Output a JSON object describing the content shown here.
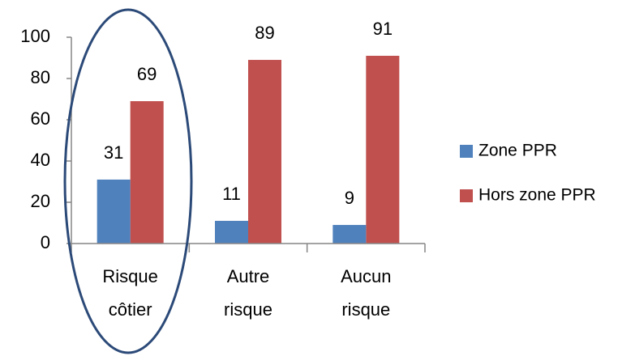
{
  "chart_data": {
    "type": "bar",
    "categories": [
      "Risque côtier",
      "Autre risque",
      "Aucun risque"
    ],
    "series": [
      {
        "name": "Zone PPR",
        "color": "#4f81bd",
        "values": [
          31,
          11,
          9
        ]
      },
      {
        "name": "Hors zone PPR",
        "color": "#c0504d",
        "values": [
          69,
          89,
          91
        ]
      }
    ],
    "ylim": [
      0,
      100
    ],
    "yticks": [
      0,
      20,
      40,
      60,
      80,
      100
    ],
    "grid": false,
    "legend": "right"
  }
}
